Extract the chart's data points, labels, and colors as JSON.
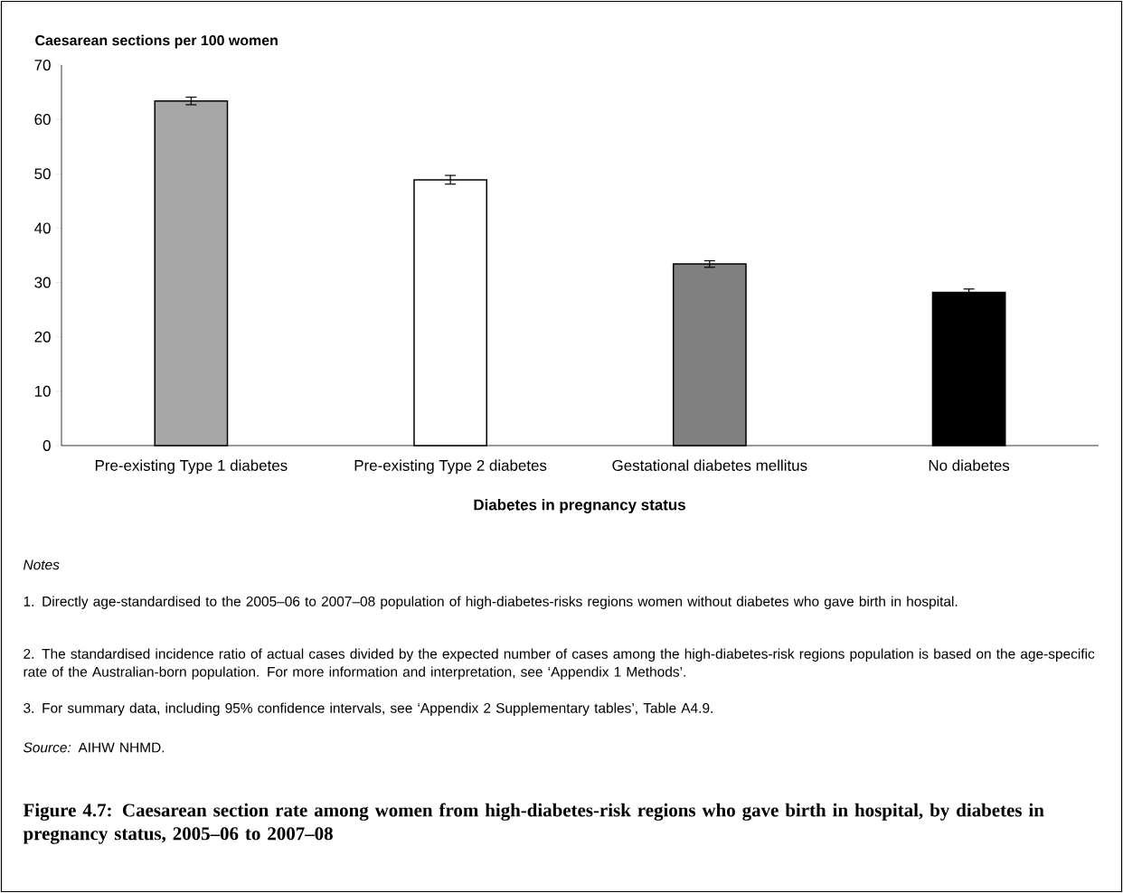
{
  "chart_data": {
    "type": "bar",
    "title": "Figure 4.7: Caesarean section rate among women from high-diabetes-risk regions who gave birth in hospital, by diabetes in pregnancy status, 2005–06 to 2007–08",
    "ylabel": "Caesarean sections per 100 women",
    "xlabel": "Diabetes in pregnancy status",
    "categories": [
      "Pre-existing Type 1 diabetes",
      "Pre-existing Type 2 diabetes",
      "Gestational diabetes mellitus",
      "No diabetes"
    ],
    "values": [
      63.4,
      48.9,
      33.4,
      28.2
    ],
    "errors": [
      0.7,
      0.8,
      0.6,
      0.6
    ],
    "colors": [
      "#a6a6a6",
      "#ffffff",
      "#808080",
      "#000000"
    ],
    "ylim": [
      0,
      70
    ],
    "yticks": [
      0,
      10,
      20,
      30,
      40,
      50,
      60,
      70
    ],
    "grid": false,
    "annotations": [
      "*Notes*",
      "1. Directly age-standardised to the 2005–06 to 2007–08 population of high-diabetes-risks regions women without diabetes who gave birth in hospital.",
      "2. The standardised incidence ratio of actual cases divided by the expected number of cases among the high-diabetes-risk regions population is based on the age-specific rate of the Australian-born population. For more information and interpretation, see ‘Appendix 1 Methods’.",
      "3. For summary data, including 95% confidence intervals, see ‘Appendix 2 Supplementary tables’, Table A4.9.",
      "*Source:* AIHW NHMD."
    ]
  }
}
